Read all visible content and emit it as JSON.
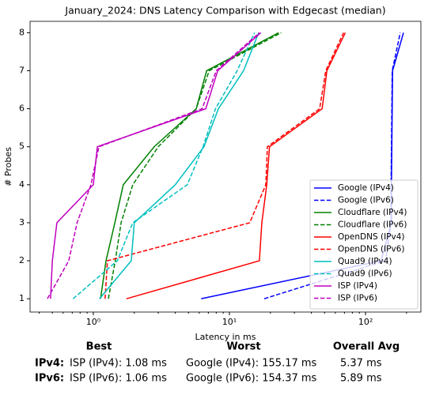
{
  "chart_data": {
    "type": "line",
    "title": "January_2024: DNS Latency Comparison with Edgecast (median)",
    "x_label": "Latency in ms",
    "y_label": "# Probes",
    "xscale": "log",
    "legend": "lower right",
    "xlim": [
      0.343,
      255
    ],
    "ylim": [
      0.65,
      8.3
    ],
    "xticks": [
      {
        "value": 1,
        "label": "10⁰"
      },
      {
        "value": 10,
        "label": "10¹"
      },
      {
        "value": 100,
        "label": "10²"
      }
    ],
    "xminorticks": [
      0.4,
      0.5,
      0.6,
      0.7,
      0.8,
      0.9,
      2,
      3,
      4,
      5,
      6,
      7,
      8,
      9,
      20,
      30,
      40,
      50,
      60,
      70,
      80,
      90,
      200
    ],
    "yticks": [
      1,
      2,
      3,
      4,
      5,
      6,
      7,
      8
    ],
    "series": [
      {
        "name": "Google (IPv4)",
        "color": "#0000ff",
        "linestyle": "solid",
        "x": [
          6.2,
          130,
          155,
          155,
          156,
          157,
          158,
          190
        ],
        "values": [
          1,
          2,
          3,
          4,
          5,
          6,
          7,
          8
        ]
      },
      {
        "name": "Google (IPv6)",
        "color": "#0000ff",
        "linestyle": "dashed",
        "x": [
          18,
          140,
          154,
          154,
          155,
          156,
          157,
          180
        ],
        "values": [
          1,
          2,
          3,
          4,
          5,
          6,
          7,
          8
        ]
      },
      {
        "name": "Cloudflare (IPv4)",
        "color": "#008000",
        "linestyle": "solid",
        "x": [
          1.13,
          1.24,
          1.44,
          1.66,
          2.8,
          5.7,
          6.8,
          23
        ],
        "values": [
          1,
          2,
          3,
          4,
          5,
          6,
          7,
          8
        ]
      },
      {
        "name": "Cloudflare (IPv6)",
        "color": "#008000",
        "linestyle": "dashed",
        "x": [
          1.29,
          1.45,
          1.6,
          1.95,
          3.0,
          5.7,
          7.1,
          24
        ],
        "values": [
          1,
          2,
          3,
          4,
          5,
          6,
          7,
          8
        ]
      },
      {
        "name": "OpenDNS (IPv4)",
        "color": "#ff0000",
        "linestyle": "solid",
        "x": [
          1.75,
          16.6,
          17.3,
          18.8,
          19.7,
          48,
          52,
          71
        ],
        "values": [
          1,
          2,
          3,
          4,
          5,
          6,
          7,
          8
        ]
      },
      {
        "name": "OpenDNS (IPv6)",
        "color": "#ff0000",
        "linestyle": "dashed",
        "x": [
          1.22,
          1.27,
          14.1,
          18.5,
          19.0,
          46,
          51,
          69
        ],
        "values": [
          1,
          2,
          3,
          4,
          5,
          6,
          7,
          8
        ]
      },
      {
        "name": "Quad9 (IPv4)",
        "color": "#00bfbf",
        "linestyle": "solid",
        "x": [
          1.11,
          1.9,
          2.0,
          4.0,
          6.5,
          8.3,
          12.7,
          16.4
        ],
        "values": [
          1,
          2,
          3,
          4,
          5,
          6,
          7,
          8
        ]
      },
      {
        "name": "Quad9 (IPv6)",
        "color": "#00bfbf",
        "linestyle": "dashed",
        "x": [
          0.71,
          1.5,
          1.95,
          4.9,
          6.4,
          7.9,
          11.4,
          15.3
        ],
        "values": [
          1,
          2,
          3,
          4,
          5,
          6,
          7,
          8
        ]
      },
      {
        "name": "ISP (IPv4)",
        "color": "#bf00bf",
        "linestyle": "solid",
        "x": [
          0.485,
          0.5,
          0.54,
          1.0,
          1.07,
          6.7,
          8.2,
          17
        ],
        "values": [
          1,
          2,
          3,
          4,
          5,
          6,
          7,
          8
        ]
      },
      {
        "name": "ISP (IPv6)",
        "color": "#bf00bf",
        "linestyle": "dashed",
        "x": [
          0.46,
          0.66,
          0.76,
          0.96,
          1.1,
          6.3,
          8.0,
          16.6
        ],
        "values": [
          1,
          2,
          3,
          4,
          5,
          6,
          7,
          8
        ]
      }
    ]
  },
  "summary": {
    "headers": [
      "Best",
      "Worst",
      "Overall Avg"
    ],
    "rows": [
      [
        "IPv4:",
        "ISP (IPv4): 1.08 ms",
        "Google (IPv4): 155.17 ms",
        "5.37 ms"
      ],
      [
        "IPv6:",
        "ISP (IPv6): 1.06 ms",
        "Google (IPv6): 154.37 ms",
        "5.89 ms"
      ]
    ]
  }
}
